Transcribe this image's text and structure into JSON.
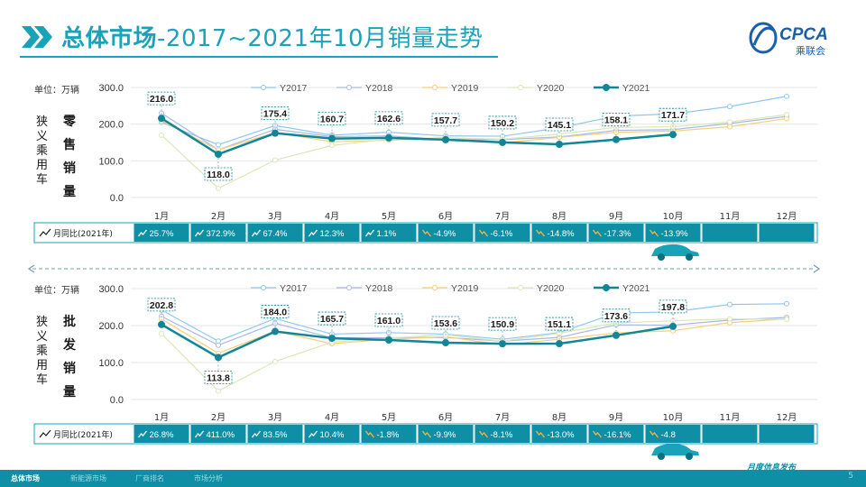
{
  "header": {
    "title_main": "总体市场",
    "title_sub": "-2017~2021年10月销量走势",
    "logo_text": "CPCA",
    "logo_sub": "乘联会"
  },
  "chart_data": [
    {
      "type": "line",
      "unit_label": "单位：万辆",
      "category_label": "狭义乘用车",
      "metric_label": "零售销量",
      "categories": [
        "1月",
        "2月",
        "3月",
        "4月",
        "5月",
        "6月",
        "7月",
        "8月",
        "9月",
        "10月",
        "11月",
        "12月"
      ],
      "ylim": [
        0,
        300
      ],
      "yticks": [
        "0.0",
        "100.0",
        "200.0",
        "300.0"
      ],
      "series": [
        {
          "name": "Y2017",
          "color": "#8ec8ee",
          "values": [
            205,
            144,
            196,
            170,
            178,
            168,
            167,
            190,
            222,
            228,
            248,
            276
          ]
        },
        {
          "name": "Y2018",
          "color": "#a9b8e6",
          "values": [
            230,
            130,
            186,
            166,
            168,
            158,
            158,
            165,
            183,
            185,
            202,
            221
          ]
        },
        {
          "name": "Y2019",
          "color": "#f7cf79",
          "values": [
            209,
            130,
            177,
            152,
            156,
            164,
            149,
            164,
            178,
            181,
            193,
            215
          ]
        },
        {
          "name": "Y2020",
          "color": "#d7e9b8",
          "values": [
            170,
            25,
            102,
            142,
            159,
            163,
            159,
            173,
            191,
            193,
            206,
            226
          ]
        },
        {
          "name": "Y2021",
          "color": "#128596",
          "values": [
            216.0,
            118.0,
            175.4,
            160.7,
            162.6,
            157.7,
            150.2,
            145.1,
            158.1,
            171.7,
            null,
            null
          ]
        }
      ],
      "yoy_label": "月同比(2021年)",
      "yoy": [
        "25.7%",
        "372.9%",
        "67.4%",
        "12.3%",
        "1.1%",
        "-4.9%",
        "-6.1%",
        "-14.8%",
        "-17.3%",
        "-13.9%",
        "",
        ""
      ],
      "yoy_dir": [
        "up",
        "up",
        "up",
        "up",
        "up",
        "down",
        "down",
        "down",
        "down",
        "down",
        "",
        ""
      ]
    },
    {
      "type": "line",
      "unit_label": "单位：万辆",
      "category_label": "狭义乘用车",
      "metric_label": "批发销量",
      "categories": [
        "1月",
        "2月",
        "3月",
        "4月",
        "5月",
        "6月",
        "7月",
        "8月",
        "9月",
        "10月",
        "11月",
        "12月"
      ],
      "ylim": [
        0,
        300
      ],
      "yticks": [
        "0.0",
        "100.0",
        "200.0",
        "300.0"
      ],
      "series": [
        {
          "name": "Y2017",
          "color": "#8ec8ee",
          "values": [
            242,
            158,
            219,
            177,
            181,
            177,
            163,
            181,
            234,
            237,
            257,
            259
          ]
        },
        {
          "name": "Y2018",
          "color": "#a9b8e6",
          "values": [
            225,
            147,
            206,
            167,
            167,
            168,
            158,
            168,
            202,
            201,
            215,
            222
          ]
        },
        {
          "name": "Y2019",
          "color": "#f7cf79",
          "values": [
            218,
            125,
            185,
            151,
            163,
            170,
            148,
            163,
            180,
            186,
            208,
            218
          ]
        },
        {
          "name": "Y2020",
          "color": "#d7e9b8",
          "values": [
            178,
            23,
            103,
            155,
            166,
            175,
            158,
            179,
            207,
            213,
            218,
            217
          ]
        },
        {
          "name": "Y2021",
          "color": "#128596",
          "values": [
            202.8,
            113.8,
            184.0,
            165.7,
            161.0,
            153.6,
            150.9,
            151.1,
            173.6,
            197.8,
            null,
            null
          ]
        }
      ],
      "yoy_label": "月同比(2021年)",
      "yoy": [
        "26.8%",
        "411.0%",
        "83.5%",
        "10.4%",
        "-1.8%",
        "-9.9%",
        "-8.1%",
        "-13.0%",
        "-16.1%",
        "-4.8",
        "",
        ""
      ],
      "yoy_dir": [
        "up",
        "up",
        "up",
        "up",
        "down",
        "down",
        "down",
        "down",
        "down",
        "down",
        "",
        ""
      ]
    }
  ],
  "footer": {
    "nav": [
      "总体市场",
      "新能源市场",
      "厂商排名",
      "市场分析"
    ],
    "release": "月度信息发布",
    "page": "5"
  }
}
